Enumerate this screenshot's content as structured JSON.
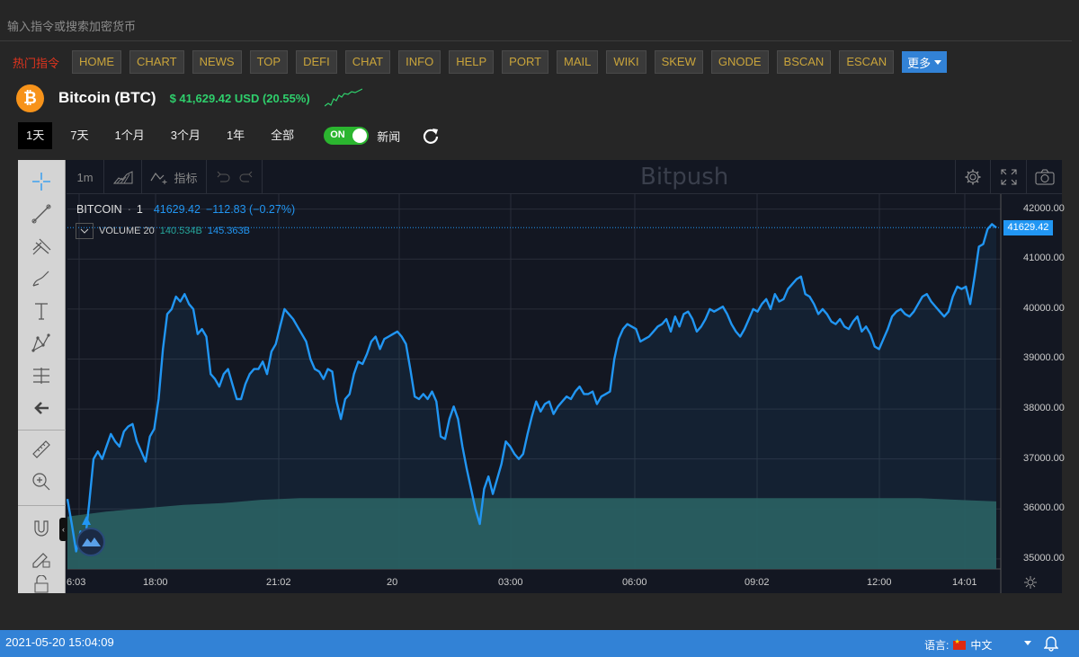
{
  "command": {
    "placeholder": "输入指令或搜索加密货币"
  },
  "hot": {
    "label": "热门指令",
    "buttons": [
      "HOME",
      "CHART",
      "NEWS",
      "TOP",
      "DEFI",
      "CHAT",
      "INFO",
      "HELP",
      "PORT",
      "MAIL",
      "WIKI",
      "SKEW",
      "GNODE",
      "BSCAN",
      "ESCAN"
    ],
    "more_label": "更多"
  },
  "coin": {
    "logo_symbol": "₿",
    "name": "Bitcoin (BTC)",
    "price": "$ 41,629.42 USD (20.55%)",
    "accent": "#f7931a",
    "price_color": "#2fcf6c"
  },
  "ranges": {
    "items": [
      "1天",
      "7天",
      "1个月",
      "3个月",
      "1年",
      "全部"
    ],
    "active": "1天"
  },
  "news_toggle": {
    "state": "ON",
    "label": "新闻"
  },
  "toolbar": {
    "interval": "1m",
    "indicators_label": "指标",
    "watermark": "Bitpush"
  },
  "legend": {
    "symbol": "BITCOIN",
    "interval": "1",
    "price": "41629.42",
    "change": "−112.83 (−0.27%)",
    "volume_name": "VOLUME 20",
    "volume_value1": "140.534B",
    "volume_value2": "145.363B"
  },
  "chart_data": {
    "type": "line",
    "series_color": "#2196f3",
    "volume_color": "#2a5a55",
    "ylim": [
      34800,
      42300
    ],
    "y_ticks": [
      {
        "value": 42000,
        "label": "42000.00"
      },
      {
        "value": 41000,
        "label": "41000.00"
      },
      {
        "value": 40000,
        "label": "40000.00"
      },
      {
        "value": 39000,
        "label": "39000.00"
      },
      {
        "value": 38000,
        "label": "38000.00"
      },
      {
        "value": 37000,
        "label": "37000.00"
      },
      {
        "value": 36000,
        "label": "36000.00"
      },
      {
        "value": 35000,
        "label": "35000.00"
      }
    ],
    "x_ticks": [
      "6:03",
      "18:00",
      "21:02",
      "20",
      "03:00",
      "06:00",
      "09:02",
      "12:00",
      "14:01"
    ],
    "last_value_label": "41629.42",
    "values": [
      36200,
      35700,
      35150,
      35550,
      35300,
      36100,
      37000,
      37150,
      37000,
      37250,
      37500,
      37350,
      37250,
      37550,
      37650,
      37700,
      37350,
      37150,
      36950,
      37450,
      37600,
      38200,
      39200,
      39900,
      40000,
      40250,
      40150,
      40300,
      40100,
      40000,
      39500,
      39600,
      39450,
      38700,
      38600,
      38450,
      38700,
      38800,
      38500,
      38200,
      38200,
      38500,
      38700,
      38800,
      38800,
      38950,
      38700,
      39150,
      39300,
      39650,
      40000,
      39900,
      39800,
      39650,
      39500,
      39350,
      39000,
      38800,
      38750,
      38600,
      38800,
      38750,
      38150,
      37800,
      38200,
      38300,
      38700,
      38950,
      38900,
      39100,
      39350,
      39450,
      39200,
      39400,
      39450,
      39500,
      39550,
      39450,
      39300,
      38800,
      38250,
      38200,
      38300,
      38200,
      38350,
      38150,
      37450,
      37400,
      37800,
      38050,
      37800,
      37250,
      36800,
      36400,
      36000,
      35700,
      36400,
      36650,
      36300,
      36600,
      36900,
      37350,
      37250,
      37100,
      37000,
      37100,
      37500,
      37850,
      38150,
      37950,
      38100,
      38150,
      37900,
      38050,
      38150,
      38250,
      38200,
      38350,
      38450,
      38300,
      38300,
      38350,
      38100,
      38250,
      38300,
      38350,
      39000,
      39400,
      39600,
      39700,
      39650,
      39600,
      39350,
      39400,
      39450,
      39550,
      39650,
      39700,
      39800,
      39550,
      39850,
      39650,
      39900,
      39950,
      39800,
      39550,
      39650,
      39800,
      40000,
      39950,
      40000,
      40050,
      39900,
      39700,
      39550,
      39450,
      39600,
      39800,
      40000,
      39950,
      40100,
      40200,
      40000,
      40300,
      40150,
      40200,
      40400,
      40500,
      40600,
      40650,
      40300,
      40250,
      40100,
      39900,
      40000,
      39900,
      39750,
      39700,
      39800,
      39650,
      39600,
      39750,
      39850,
      39550,
      39650,
      39500,
      39250,
      39200,
      39400,
      39600,
      39850,
      39950,
      40000,
      39900,
      39850,
      39950,
      40100,
      40250,
      40300,
      40150,
      40050,
      39950,
      39850,
      39950,
      40250,
      40450,
      40400,
      40450,
      40100,
      40650,
      41250,
      41300,
      41600,
      41700,
      41629
    ],
    "volume_fraction": [
      0.31,
      0.34,
      0.36,
      0.38,
      0.39,
      0.41,
      0.42,
      0.42,
      0.42,
      0.42,
      0.42,
      0.42,
      0.42,
      0.42,
      0.42,
      0.42,
      0.42,
      0.42,
      0.42,
      0.42,
      0.42,
      0.42,
      0.42,
      0.41,
      0.4
    ]
  },
  "status": {
    "datetime": "2021-05-20 15:04:09",
    "lang_label": "语言:",
    "lang_value": "中文"
  }
}
